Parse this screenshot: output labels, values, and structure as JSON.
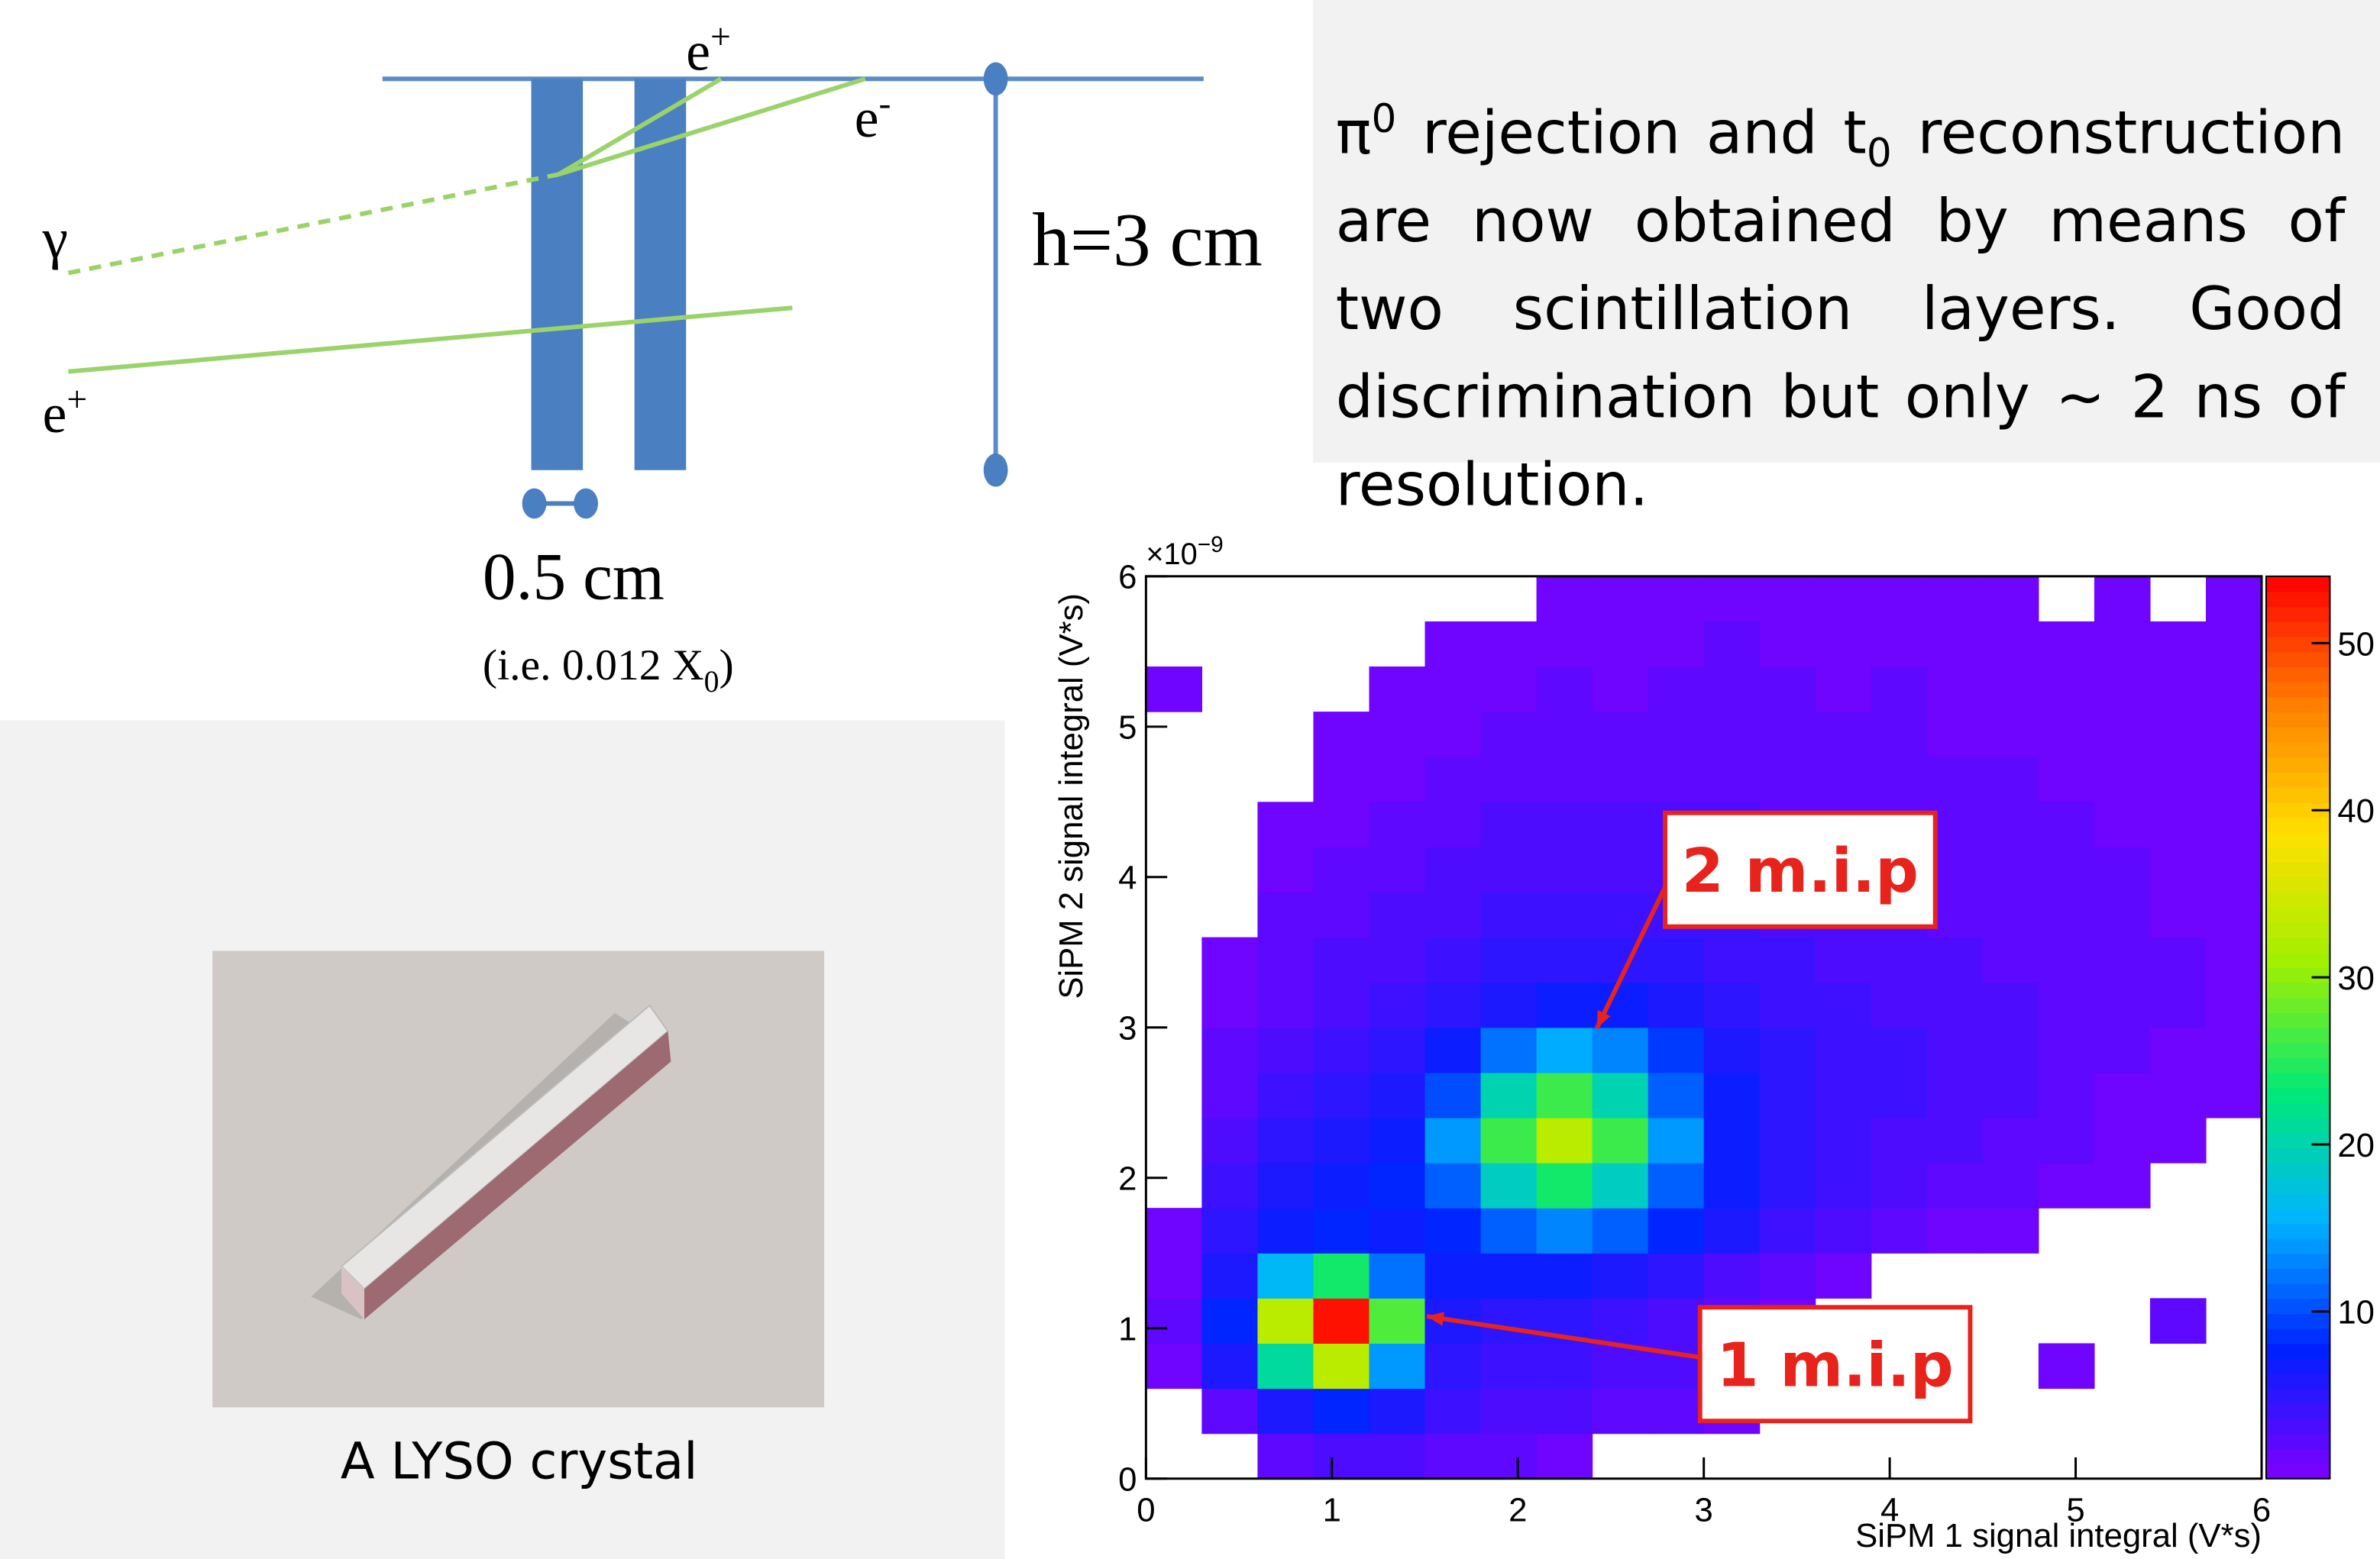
{
  "diagram": {
    "e_plus_top": [
      "e",
      "+"
    ],
    "e_minus": [
      "e",
      "-"
    ],
    "gamma": "γ",
    "e_plus_bottom": [
      "e",
      "+"
    ],
    "height": "h=3 cm",
    "thickness": "0.5 cm",
    "thickness_note": [
      "(i.e. 0.012 X",
      "0",
      ")"
    ]
  },
  "text": [
    "π",
    "0",
    " rejection and t",
    "0",
    " reconstruction are now obtained by means of two scintillation layers.  Good discrimination but only ~ 2 ns of resolution."
  ],
  "photo_caption": "A LYSO crystal",
  "chart_data": {
    "type": "heatmap",
    "xlabel": "SiPM 1 signal integral (V*s)",
    "ylabel": "SiPM 2 signal integral (V*s)",
    "y_multiplier": "×10",
    "y_exponent": "−9",
    "xlim": [
      0,
      6
    ],
    "ylim": [
      0,
      6
    ],
    "xticks": [
      0,
      1,
      2,
      3,
      4,
      5,
      6
    ],
    "yticks": [
      0,
      1,
      2,
      3,
      4,
      5,
      6
    ],
    "x_bins": [
      0,
      0.3,
      0.6,
      0.9,
      1.2,
      1.5,
      1.8,
      2.1,
      2.4,
      2.7,
      3,
      3.3,
      3.6,
      3.9,
      4.2,
      4.5,
      4.8,
      5.1,
      5.4,
      5.7,
      6
    ],
    "y_bins": [
      0,
      0.3,
      0.6,
      0.9,
      1.2,
      1.5,
      1.8,
      2.1,
      2.4,
      2.7,
      3,
      3.3,
      3.6,
      3.9,
      4.2,
      4.5,
      4.8,
      5.1,
      5.4,
      5.7,
      6
    ],
    "z": [
      [
        0,
        0,
        2,
        3,
        3,
        2,
        2,
        1,
        0,
        0,
        0,
        0,
        0,
        0,
        0,
        0,
        0,
        0,
        0,
        0
      ],
      [
        0,
        2,
        6,
        8,
        6,
        4,
        3,
        3,
        2,
        2,
        1,
        0,
        0,
        0,
        0,
        0,
        0,
        0,
        0,
        0
      ],
      [
        1,
        6,
        21,
        33,
        14,
        5,
        4,
        4,
        3,
        3,
        2,
        1,
        0,
        0,
        0,
        0,
        1,
        0,
        0,
        0
      ],
      [
        2,
        8,
        33,
        53,
        27,
        6,
        5,
        5,
        4,
        3,
        2,
        1,
        0,
        0,
        0,
        0,
        0,
        0,
        2,
        0
      ],
      [
        1,
        6,
        16,
        24,
        12,
        7,
        7,
        7,
        6,
        5,
        3,
        2,
        1,
        0,
        0,
        0,
        0,
        0,
        0,
        0
      ],
      [
        1,
        5,
        7,
        8,
        7,
        8,
        11,
        13,
        11,
        8,
        6,
        4,
        3,
        2,
        1,
        1,
        0,
        0,
        0,
        0
      ],
      [
        0,
        4,
        6,
        7,
        8,
        11,
        19,
        24,
        19,
        11,
        7,
        5,
        4,
        3,
        2,
        2,
        1,
        1,
        0,
        0
      ],
      [
        0,
        3,
        5,
        6,
        7,
        14,
        26,
        33,
        26,
        14,
        7,
        5,
        4,
        3,
        3,
        2,
        2,
        1,
        1,
        0
      ],
      [
        0,
        2,
        4,
        5,
        6,
        10,
        20,
        26,
        20,
        11,
        7,
        5,
        4,
        4,
        3,
        3,
        2,
        1,
        1,
        1
      ],
      [
        0,
        2,
        3,
        4,
        5,
        7,
        12,
        15,
        13,
        9,
        6,
        5,
        4,
        4,
        3,
        3,
        2,
        2,
        1,
        1
      ],
      [
        0,
        1,
        2,
        3,
        4,
        5,
        6,
        7,
        7,
        6,
        5,
        4,
        4,
        3,
        3,
        3,
        2,
        2,
        2,
        1
      ],
      [
        0,
        1,
        2,
        3,
        3,
        4,
        5,
        5,
        5,
        5,
        4,
        4,
        3,
        3,
        3,
        2,
        2,
        2,
        2,
        1
      ],
      [
        0,
        0,
        2,
        2,
        3,
        3,
        4,
        4,
        4,
        4,
        4,
        3,
        3,
        3,
        2,
        2,
        2,
        2,
        1,
        1
      ],
      [
        0,
        0,
        1,
        2,
        2,
        3,
        3,
        3,
        3,
        3,
        3,
        3,
        3,
        2,
        2,
        2,
        2,
        2,
        1,
        1
      ],
      [
        0,
        0,
        1,
        1,
        2,
        2,
        3,
        3,
        3,
        3,
        3,
        2,
        2,
        2,
        2,
        2,
        2,
        1,
        1,
        1
      ],
      [
        0,
        0,
        0,
        1,
        1,
        2,
        2,
        2,
        2,
        2,
        2,
        2,
        2,
        2,
        2,
        2,
        1,
        1,
        1,
        1
      ],
      [
        0,
        0,
        0,
        1,
        1,
        1,
        2,
        2,
        2,
        2,
        2,
        2,
        2,
        2,
        1,
        1,
        1,
        1,
        1,
        1
      ],
      [
        1,
        0,
        0,
        0,
        1,
        1,
        1,
        2,
        1,
        2,
        2,
        2,
        1,
        2,
        1,
        1,
        1,
        1,
        1,
        1
      ],
      [
        0,
        0,
        0,
        0,
        0,
        1,
        1,
        1,
        1,
        1,
        2,
        1,
        1,
        1,
        1,
        1,
        1,
        1,
        1,
        1
      ],
      [
        0,
        0,
        0,
        0,
        0,
        0,
        0,
        1,
        1,
        1,
        1,
        1,
        1,
        1,
        1,
        1,
        0,
        1,
        0,
        1
      ]
    ],
    "zlim": [
      0,
      54
    ],
    "zticks": [
      10,
      20,
      30,
      40,
      50
    ],
    "colorscale": [
      "#7f00ff",
      "#0020ff",
      "#00b4ff",
      "#00e878",
      "#a0f000",
      "#ffe000",
      "#ff8000",
      "#ff0000"
    ],
    "annotations": [
      "2 m.i.p",
      "1 m.i.p"
    ]
  }
}
